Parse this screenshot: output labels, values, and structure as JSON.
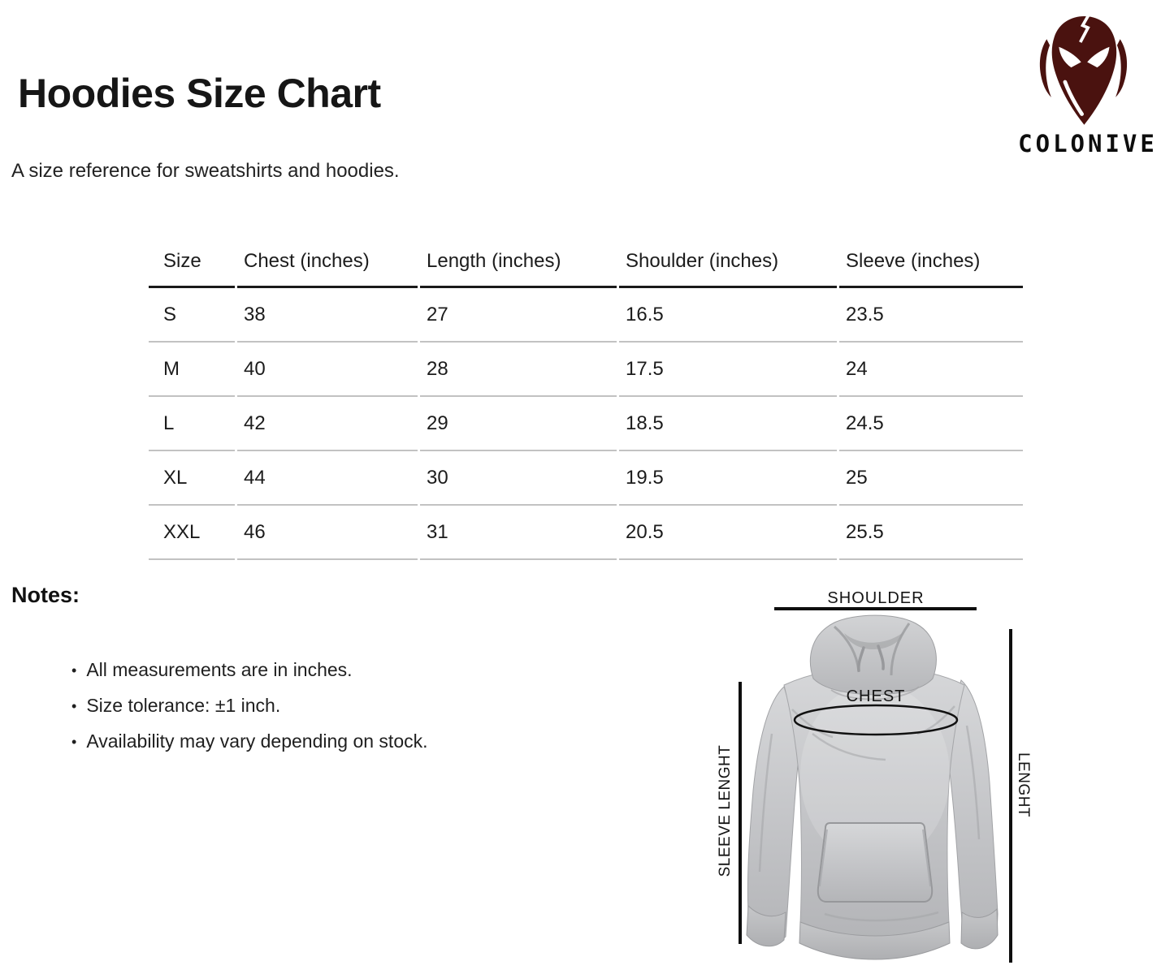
{
  "page": {
    "title": "Hoodies Size Chart",
    "subtitle": "A size reference for sweatshirts and hoodies."
  },
  "brand": {
    "name": "COLONIVE",
    "logo_icon": "demon-mask-icon",
    "logo_color": "#4a120f"
  },
  "size_table": {
    "headers": [
      "Size",
      "Chest (inches)",
      "Length (inches)",
      "Shoulder (inches)",
      "Sleeve (inches)"
    ],
    "rows": [
      [
        "S",
        "38",
        "27",
        "16.5",
        "23.5"
      ],
      [
        "M",
        "40",
        "28",
        "17.5",
        "24"
      ],
      [
        "L",
        "42",
        "29",
        "18.5",
        "24.5"
      ],
      [
        "XL",
        "44",
        "30",
        "19.5",
        "25"
      ],
      [
        "XXL",
        "46",
        "31",
        "20.5",
        "25.5"
      ]
    ]
  },
  "notes": {
    "heading": "Notes:",
    "bullet": "•",
    "items": [
      "All measurements are in inches.",
      "Size tolerance: ±1 inch.",
      "Availability may vary depending on stock."
    ]
  },
  "diagram": {
    "shoulder_label": "SHOULDER",
    "chest_label": "CHEST",
    "sleeve_length_label": "SLEEVE LENGHT",
    "length_label": "LENGHT"
  },
  "colors": {
    "text": "#1b1b1b",
    "logo_maroon": "#4a120f",
    "table_header_rule": "#1a1a1a",
    "table_row_rule": "#c2c2c2",
    "measure_line": "#0e0e0e",
    "hoodie_gray": "#c3c4c7"
  }
}
